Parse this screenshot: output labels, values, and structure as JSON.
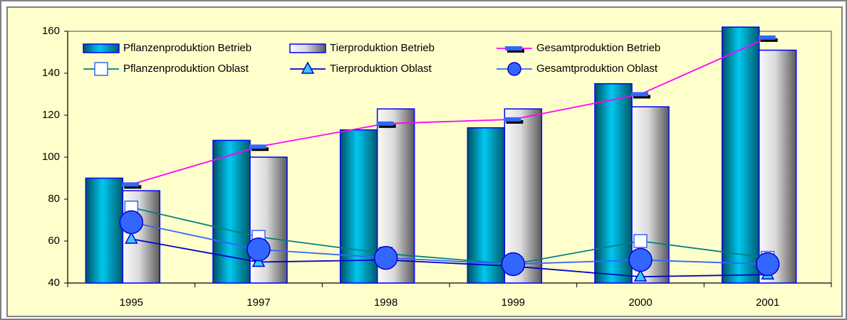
{
  "chart_data": {
    "type": "bar",
    "categories": [
      "1995",
      "1997",
      "1998",
      "1999",
      "2000",
      "2001"
    ],
    "series": [
      {
        "name": "Pflanzenproduktion Betrieb",
        "type": "bar",
        "color": "#00c8f0",
        "values": [
          90,
          108,
          113,
          114,
          135,
          162
        ]
      },
      {
        "name": "Tierproduktion Betrieb",
        "type": "bar",
        "color": "#c8c8c8",
        "values": [
          84,
          100,
          123,
          123,
          124,
          151
        ]
      },
      {
        "name": "Gesamtproduktion Betrieb",
        "type": "line",
        "marker": "dash",
        "color": "#ff00ff",
        "values": [
          87,
          105,
          116,
          118,
          130,
          157
        ]
      },
      {
        "name": "Pflanzenproduktion Oblast",
        "type": "line",
        "marker": "square",
        "color": "#008080",
        "values": [
          76,
          62,
          54,
          49,
          60,
          52
        ]
      },
      {
        "name": "Tierproduktion Oblast",
        "type": "line",
        "marker": "triangle",
        "color": "#0000cc",
        "values": [
          61,
          50,
          51,
          48,
          43,
          44
        ]
      },
      {
        "name": "Gesamtproduktion Oblast",
        "type": "line",
        "marker": "circle",
        "color": "#3366ff",
        "values": [
          69,
          56,
          52,
          49,
          51,
          49
        ]
      }
    ],
    "ylim": [
      40,
      160
    ],
    "yticks": [
      40,
      60,
      80,
      100,
      120,
      140,
      160
    ],
    "legend": "top",
    "grid": false
  }
}
